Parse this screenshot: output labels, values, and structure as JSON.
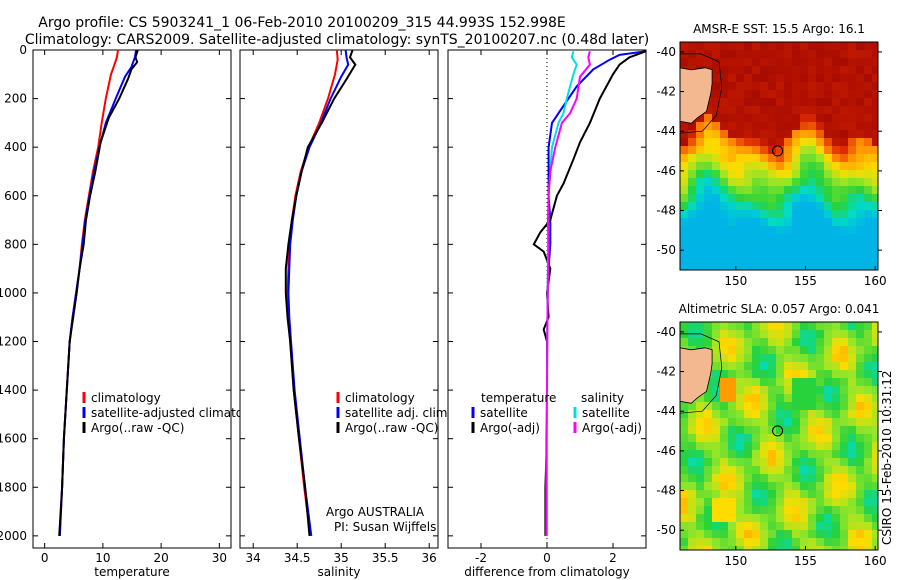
{
  "header": {
    "title_line1": "Argo profile: CS 5903241_1 06-Feb-2010 20100209_315 44.993S 152.998E",
    "title_line2": "Climatology: CARS2009. Satellite-adjusted climatology: synTS_20100207.nc (0.48d later)"
  },
  "footer": {
    "credit": "CSIRO 15-Feb-2010 10:31:12",
    "program": "Argo AUSTRALIA",
    "pi": "PI: Susan Wijffels"
  },
  "colors": {
    "climatology": "#ff0000",
    "satellite": "#0000ff",
    "argo": "#000000",
    "sat_salinity_diff": "#00e0e0",
    "argo_salinity_diff": "#ff00ff"
  },
  "chart_data": [
    {
      "type": "line",
      "id": "temperature",
      "xlabel": "temperature",
      "xlim": [
        -2,
        32
      ],
      "ylim": [
        0,
        2050
      ],
      "xticks": [
        0,
        10,
        20,
        30
      ],
      "yticks": [
        0,
        200,
        400,
        600,
        800,
        1000,
        1200,
        1400,
        1600,
        1800,
        2000
      ],
      "legend": [
        "climatology",
        "satellite-adjusted climatology",
        "Argo(..raw -QC)"
      ],
      "series": [
        {
          "name": "climatology",
          "color": "#ff0000",
          "points": [
            [
              12.6,
              0
            ],
            [
              12.4,
              30
            ],
            [
              12.0,
              60
            ],
            [
              11.4,
              100
            ],
            [
              10.5,
              200
            ],
            [
              9.8,
              300
            ],
            [
              9.2,
              400
            ],
            [
              8.3,
              500
            ],
            [
              7.6,
              600
            ],
            [
              6.9,
              700
            ],
            [
              6.4,
              800
            ],
            [
              6.0,
              900
            ],
            [
              5.4,
              1000
            ],
            [
              4.8,
              1100
            ],
            [
              4.3,
              1200
            ],
            [
              3.8,
              1400
            ],
            [
              3.3,
              1600
            ],
            [
              3.0,
              1800
            ],
            [
              2.6,
              2000
            ]
          ]
        },
        {
          "name": "satellite-adjusted climatology",
          "color": "#0000ff",
          "points": [
            [
              15.7,
              0
            ],
            [
              15.5,
              30
            ],
            [
              14.9,
              70
            ],
            [
              13.8,
              110
            ],
            [
              12.2,
              200
            ],
            [
              10.5,
              300
            ],
            [
              9.4,
              400
            ],
            [
              8.5,
              500
            ],
            [
              7.7,
              600
            ],
            [
              7.0,
              700
            ],
            [
              6.5,
              800
            ],
            [
              6.0,
              900
            ],
            [
              5.4,
              1000
            ],
            [
              4.8,
              1100
            ],
            [
              4.3,
              1200
            ],
            [
              3.8,
              1400
            ],
            [
              3.3,
              1600
            ],
            [
              3.0,
              1800
            ],
            [
              2.6,
              2000
            ]
          ]
        },
        {
          "name": "Argo(..raw -QC)",
          "color": "#000000",
          "points": [
            [
              16.0,
              0
            ],
            [
              15.6,
              30
            ],
            [
              15.9,
              50
            ],
            [
              14.9,
              80
            ],
            [
              14.3,
              120
            ],
            [
              12.8,
              200
            ],
            [
              11.0,
              280
            ],
            [
              9.6,
              380
            ],
            [
              8.7,
              500
            ],
            [
              7.8,
              600
            ],
            [
              7.1,
              700
            ],
            [
              6.7,
              800
            ],
            [
              6.0,
              900
            ],
            [
              5.5,
              1000
            ],
            [
              4.9,
              1100
            ],
            [
              4.3,
              1200
            ],
            [
              3.8,
              1400
            ],
            [
              3.3,
              1600
            ],
            [
              3.0,
              1800
            ],
            [
              2.5,
              2000
            ]
          ]
        }
      ]
    },
    {
      "type": "line",
      "id": "salinity",
      "xlabel": "salinity",
      "xlim": [
        33.85,
        36.1
      ],
      "ylim": [
        0,
        2050
      ],
      "xticks": [
        34,
        34.5,
        35,
        35.5,
        36
      ],
      "legend": [
        "climatology",
        "satellite adj. clim.",
        "Argo(..raw -QC)"
      ],
      "series": [
        {
          "name": "climatology",
          "color": "#ff0000",
          "points": [
            [
              34.95,
              0
            ],
            [
              34.96,
              40
            ],
            [
              34.93,
              100
            ],
            [
              34.85,
              200
            ],
            [
              34.75,
              300
            ],
            [
              34.63,
              400
            ],
            [
              34.54,
              500
            ],
            [
              34.48,
              600
            ],
            [
              34.44,
              700
            ],
            [
              34.41,
              800
            ],
            [
              34.4,
              900
            ],
            [
              34.39,
              1000
            ],
            [
              34.4,
              1100
            ],
            [
              34.42,
              1200
            ],
            [
              34.46,
              1400
            ],
            [
              34.52,
              1600
            ],
            [
              34.58,
              1800
            ],
            [
              34.65,
              2000
            ]
          ]
        },
        {
          "name": "satellite adj. clim.",
          "color": "#0000ff",
          "points": [
            [
              35.05,
              0
            ],
            [
              35.06,
              30
            ],
            [
              35.08,
              60
            ],
            [
              35.0,
              110
            ],
            [
              34.88,
              200
            ],
            [
              34.77,
              300
            ],
            [
              34.64,
              400
            ],
            [
              34.55,
              500
            ],
            [
              34.49,
              600
            ],
            [
              34.45,
              700
            ],
            [
              34.42,
              800
            ],
            [
              34.41,
              900
            ],
            [
              34.4,
              1000
            ],
            [
              34.41,
              1100
            ],
            [
              34.43,
              1200
            ],
            [
              34.47,
              1400
            ],
            [
              34.53,
              1600
            ],
            [
              34.59,
              1800
            ],
            [
              34.66,
              2000
            ]
          ]
        },
        {
          "name": "Argo(..raw -QC)",
          "color": "#000000",
          "points": [
            [
              35.13,
              0
            ],
            [
              35.1,
              30
            ],
            [
              35.16,
              60
            ],
            [
              35.06,
              120
            ],
            [
              34.92,
              200
            ],
            [
              34.78,
              300
            ],
            [
              34.62,
              400
            ],
            [
              34.55,
              500
            ],
            [
              34.49,
              600
            ],
            [
              34.44,
              700
            ],
            [
              34.4,
              800
            ],
            [
              34.37,
              900
            ],
            [
              34.37,
              1000
            ],
            [
              34.39,
              1100
            ],
            [
              34.42,
              1200
            ],
            [
              34.46,
              1400
            ],
            [
              34.52,
              1600
            ],
            [
              34.59,
              1800
            ],
            [
              34.64,
              2000
            ]
          ]
        }
      ]
    },
    {
      "type": "line",
      "id": "difference",
      "xlabel": "difference from climatology",
      "xlim": [
        -3,
        3
      ],
      "ylim": [
        0,
        2050
      ],
      "xticks": [
        -2,
        0,
        2
      ],
      "legend": {
        "temperature_header": "temperature",
        "salinity_header": "salinity",
        "items": [
          "satellite",
          "Argo(-adj)",
          "satellite",
          "Argo(-adj)"
        ]
      },
      "series": [
        {
          "name": "temperature satellite",
          "color": "#0000ff",
          "points": [
            [
              3.0,
              5
            ],
            [
              2.2,
              20
            ],
            [
              1.9,
              40
            ],
            [
              1.4,
              80
            ],
            [
              0.9,
              150
            ],
            [
              0.4,
              250
            ],
            [
              0.15,
              300
            ],
            [
              0.05,
              400
            ],
            [
              0.05,
              600
            ],
            [
              0.1,
              700
            ],
            [
              0.1,
              800
            ],
            [
              0.05,
              900
            ],
            [
              0.02,
              1000
            ],
            [
              0.0,
              1300
            ],
            [
              0.0,
              1600
            ],
            [
              0.0,
              1800
            ],
            [
              0.0,
              2000
            ]
          ]
        },
        {
          "name": "temperature Argo(-adj)",
          "color": "#000000",
          "points": [
            [
              3.0,
              5
            ],
            [
              2.5,
              30
            ],
            [
              2.2,
              60
            ],
            [
              2.0,
              100
            ],
            [
              1.6,
              200
            ],
            [
              1.3,
              300
            ],
            [
              1.0,
              380
            ],
            [
              0.8,
              450
            ],
            [
              0.5,
              550
            ],
            [
              0.3,
              600
            ],
            [
              0.1,
              700
            ],
            [
              -0.2,
              750
            ],
            [
              -0.4,
              800
            ],
            [
              -0.1,
              830
            ],
            [
              0.1,
              900
            ],
            [
              0.0,
              1000
            ],
            [
              0.05,
              1100
            ],
            [
              -0.1,
              1150
            ],
            [
              0.0,
              1200
            ],
            [
              0.0,
              1400
            ],
            [
              0.0,
              1600
            ],
            [
              -0.05,
              1800
            ],
            [
              -0.05,
              2000
            ]
          ]
        },
        {
          "name": "salinity satellite",
          "color": "#00e0e0",
          "points": [
            [
              0.8,
              5
            ],
            [
              0.75,
              30
            ],
            [
              0.9,
              60
            ],
            [
              0.8,
              100
            ],
            [
              0.6,
              200
            ],
            [
              0.5,
              260
            ],
            [
              0.35,
              300
            ],
            [
              0.15,
              400
            ],
            [
              0.1,
              500
            ],
            [
              0.05,
              600
            ],
            [
              0.03,
              800
            ],
            [
              0.02,
              1000
            ],
            [
              0.01,
              1200
            ],
            [
              0.0,
              1400
            ],
            [
              0.0,
              1600
            ],
            [
              0.0,
              1800
            ],
            [
              0.0,
              2000
            ]
          ]
        },
        {
          "name": "salinity Argo(-adj)",
          "color": "#ff00ff",
          "points": [
            [
              1.3,
              5
            ],
            [
              1.25,
              30
            ],
            [
              1.3,
              60
            ],
            [
              1.0,
              110
            ],
            [
              0.9,
              200
            ],
            [
              0.7,
              260
            ],
            [
              0.45,
              300
            ],
            [
              0.25,
              400
            ],
            [
              0.1,
              500
            ],
            [
              0.05,
              600
            ],
            [
              0.03,
              700
            ],
            [
              0.05,
              800
            ],
            [
              0.02,
              1000
            ],
            [
              0.01,
              1200
            ],
            [
              0.0,
              1400
            ],
            [
              -0.02,
              1600
            ],
            [
              -0.02,
              1800
            ],
            [
              -0.02,
              2000
            ]
          ]
        }
      ]
    },
    {
      "type": "heatmap",
      "id": "sst_map",
      "title": "AMSR-E SST: 15.5 Argo: 16.1",
      "xlim": [
        146,
        160.2
      ],
      "ylim": [
        -51,
        -39.5
      ],
      "xticks": [
        150,
        155,
        160
      ],
      "yticks": [
        -40,
        -42,
        -44,
        -46,
        -48,
        -50
      ],
      "marker": {
        "lon": 152.998,
        "lat": -44.993
      }
    },
    {
      "type": "heatmap",
      "id": "sla_map",
      "title": "Altimetric SLA: 0.057 Argo: 0.041",
      "xlim": [
        146,
        160.2
      ],
      "ylim": [
        -51,
        -39.5
      ],
      "xticks": [
        150,
        155,
        160
      ],
      "yticks": [
        -40,
        -42,
        -44,
        -46,
        -48,
        -50
      ],
      "marker": {
        "lon": 152.998,
        "lat": -44.993
      }
    }
  ]
}
